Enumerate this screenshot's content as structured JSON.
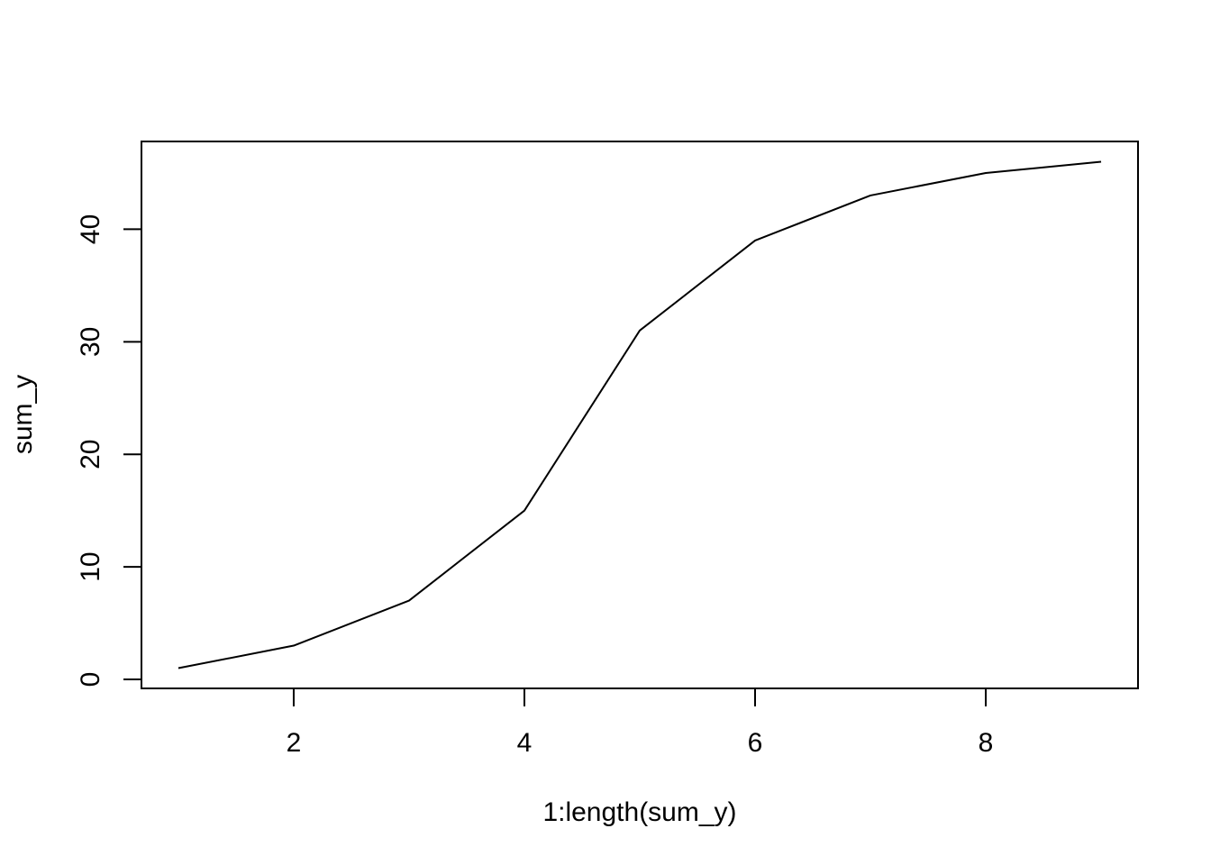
{
  "chart_data": {
    "type": "line",
    "title": "",
    "xlabel": "1:length(sum_y)",
    "ylabel": "sum_y",
    "x": [
      1,
      2,
      3,
      4,
      5,
      6,
      7,
      8,
      9
    ],
    "series": [
      {
        "values": [
          1,
          3,
          7,
          15,
          31,
          39,
          43,
          45,
          46
        ]
      }
    ],
    "xlim": [
      0.68,
      9.32
    ],
    "ylim": [
      -0.8,
      47.8
    ],
    "xticks": [
      2,
      4,
      6,
      8
    ],
    "xtick_labels": [
      "2",
      "4",
      "6",
      "8"
    ],
    "yticks": [
      0,
      10,
      20,
      30,
      40
    ],
    "ytick_labels": [
      "0",
      "10",
      "20",
      "30",
      "40"
    ],
    "grid": false,
    "line_color": "#000000"
  }
}
